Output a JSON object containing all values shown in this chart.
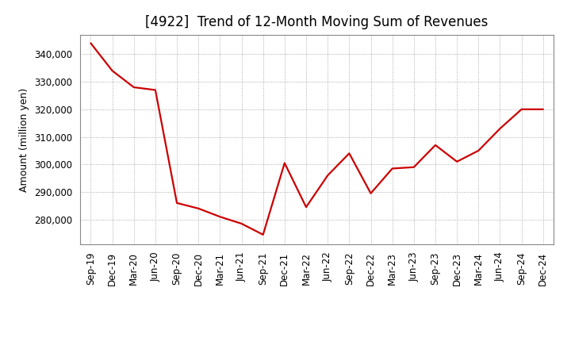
{
  "title": "[4922]  Trend of 12-Month Moving Sum of Revenues",
  "ylabel": "Amount (million yen)",
  "line_color": "#cc0000",
  "background_color": "#ffffff",
  "grid_color": "#999999",
  "labels": [
    "Sep-19",
    "Dec-19",
    "Mar-20",
    "Jun-20",
    "Sep-20",
    "Dec-20",
    "Mar-21",
    "Jun-21",
    "Sep-21",
    "Dec-21",
    "Mar-22",
    "Jun-22",
    "Sep-22",
    "Dec-22",
    "Mar-23",
    "Jun-23",
    "Sep-23",
    "Dec-23",
    "Mar-24",
    "Jun-24",
    "Sep-24",
    "Dec-24"
  ],
  "values": [
    344000,
    334000,
    328000,
    327000,
    286000,
    284000,
    281000,
    278500,
    274500,
    300500,
    284500,
    296000,
    304000,
    289500,
    298500,
    299000,
    307000,
    301000,
    305000,
    313000,
    320000,
    320000
  ],
  "ylim": [
    271000,
    347000
  ],
  "yticks": [
    280000,
    290000,
    300000,
    310000,
    320000,
    330000,
    340000
  ],
  "title_fontsize": 12,
  "label_fontsize": 9,
  "tick_fontsize": 8.5
}
